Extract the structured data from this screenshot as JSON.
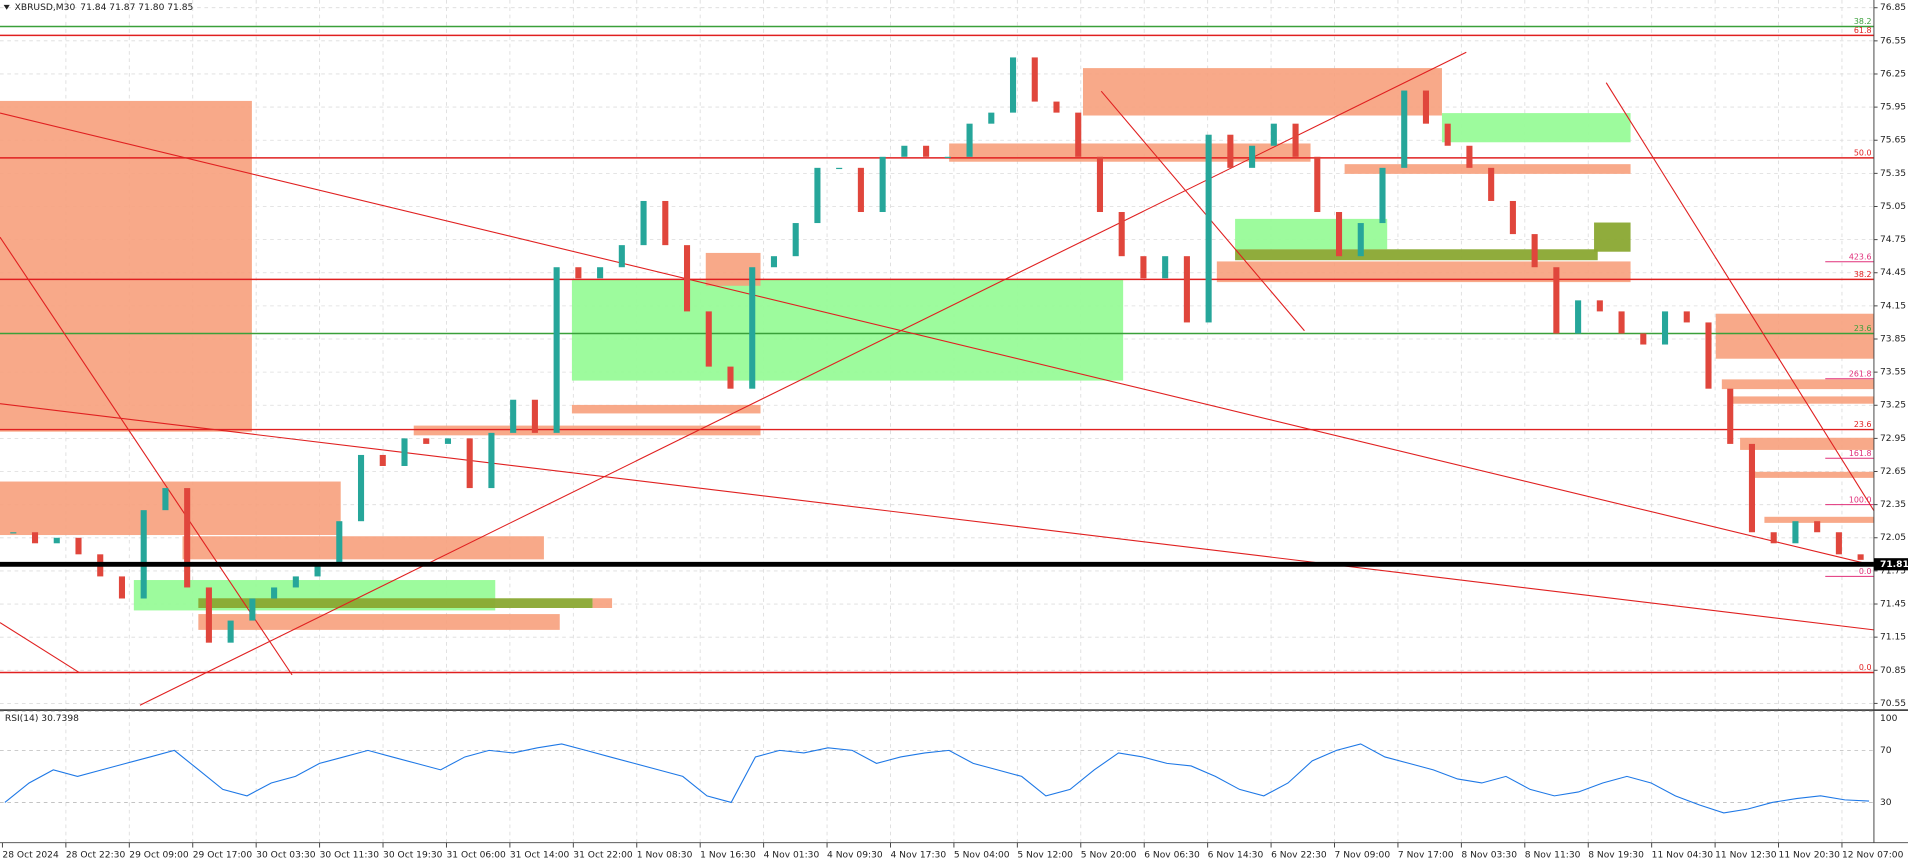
{
  "chart_data": {
    "type": "candlestick",
    "title": "XBRUSD,M30",
    "ohlc_text": "71.84 71.87 71.80 71.85",
    "categories": [
      "28 Oct 2024",
      "28 Oct 22:30",
      "29 Oct 09:00",
      "29 Oct 17:00",
      "30 Oct 03:30",
      "30 Oct 11:30",
      "30 Oct 19:30",
      "31 Oct 06:00",
      "31 Oct 14:00",
      "31 Oct 22:00",
      "1 Nov 08:30",
      "1 Nov 16:30",
      "4 Nov 01:30",
      "4 Nov 09:30",
      "4 Nov 17:30",
      "5 Nov 04:00",
      "5 Nov 12:00",
      "5 Nov 20:00",
      "6 Nov 06:30",
      "6 Nov 14:30",
      "6 Nov 22:30",
      "7 Nov 09:00",
      "7 Nov 17:00",
      "8 Nov 03:30",
      "8 Nov 11:30",
      "8 Nov 19:30",
      "11 Nov 04:30",
      "11 Nov 12:30",
      "11 Nov 20:30",
      "12 Nov 07:00"
    ],
    "close": [
      72.1,
      72.0,
      72.05,
      71.9,
      71.7,
      71.5,
      72.3,
      72.5,
      71.6,
      71.1,
      71.3,
      71.5,
      71.6,
      71.7,
      71.8,
      72.2,
      72.8,
      72.7,
      72.95,
      72.9,
      72.95,
      72.5,
      73.0,
      73.3,
      73.0,
      74.5,
      74.4,
      74.5,
      74.7,
      75.1,
      74.7,
      74.1,
      73.6,
      73.4,
      74.5,
      74.6,
      74.9,
      75.4,
      75.4,
      75.0,
      75.5,
      75.6,
      75.5,
      75.5,
      75.8,
      75.9,
      76.4,
      76.0,
      75.9,
      75.5,
      75.0,
      74.6,
      74.4,
      74.6,
      74.0,
      75.7,
      75.4,
      75.6,
      75.8,
      75.5,
      75.0,
      74.6,
      74.9,
      75.4,
      76.1,
      75.8,
      75.6,
      75.4,
      75.1,
      74.8,
      74.5,
      73.9,
      74.2,
      74.1,
      73.9,
      73.8,
      74.1,
      74.0,
      73.4,
      72.9,
      72.1,
      72.0,
      72.2,
      72.1,
      71.9,
      71.85
    ],
    "up_color": "#26a69a",
    "down_color": "#e0463c",
    "ylim": [
      70.5,
      76.92
    ],
    "yticks": [
      76.85,
      76.55,
      76.25,
      75.95,
      75.65,
      75.35,
      75.05,
      74.75,
      74.45,
      74.15,
      73.85,
      73.55,
      73.25,
      72.95,
      72.65,
      72.35,
      72.05,
      71.75,
      71.45,
      71.15,
      70.85,
      70.55
    ],
    "grid": true,
    "current_price": 71.81,
    "levels": [
      {
        "price": 76.68,
        "label": "38.2",
        "color": "#3aa03a"
      },
      {
        "price": 76.6,
        "label": "61.8",
        "color": "#e02020"
      },
      {
        "price": 75.49,
        "label": "50.0",
        "color": "#e02020"
      },
      {
        "price": 74.39,
        "label": "38.2",
        "color": "#e02020"
      },
      {
        "price": 73.9,
        "label": "23.6",
        "color": "#3aa03a"
      },
      {
        "price": 73.03,
        "label": "23.6",
        "color": "#e02020"
      },
      {
        "price": 70.83,
        "label": "0.0",
        "color": "#e02020"
      }
    ],
    "fib_marks": [
      {
        "price": 74.55,
        "label": "423.6"
      },
      {
        "price": 73.49,
        "label": "261.8"
      },
      {
        "price": 72.77,
        "label": "161.8"
      },
      {
        "price": 72.35,
        "label": "100.0"
      },
      {
        "price": 71.7,
        "label": "0.0"
      }
    ],
    "rsi": {
      "title": "RSI(14) 30.7398",
      "color": "#1e78e6",
      "ylim": [
        0,
        100
      ],
      "yticks": [
        100,
        70,
        30
      ],
      "values": [
        30,
        45,
        55,
        50,
        55,
        60,
        65,
        70,
        55,
        40,
        35,
        45,
        50,
        60,
        65,
        70,
        65,
        60,
        55,
        65,
        70,
        68,
        72,
        75,
        70,
        65,
        60,
        55,
        50,
        35,
        30,
        65,
        70,
        68,
        72,
        70,
        60,
        65,
        68,
        70,
        60,
        55,
        50,
        35,
        40,
        55,
        68,
        65,
        60,
        58,
        50,
        40,
        35,
        45,
        62,
        70,
        75,
        65,
        60,
        55,
        48,
        45,
        50,
        40,
        35,
        38,
        45,
        50,
        45,
        35,
        28,
        22,
        25,
        30,
        33,
        35,
        32,
        31
      ]
    }
  }
}
